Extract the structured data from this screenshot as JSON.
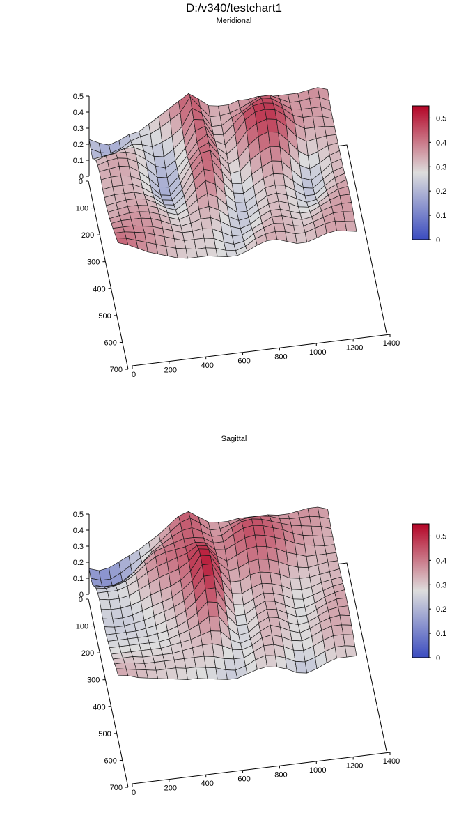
{
  "title": "D:/v340/testchart1",
  "colors": {
    "low": "#3b4cc0",
    "mid": "#dddddd",
    "high": "#b40426"
  },
  "chart_data": [
    {
      "type": "surface",
      "subtitle": "Meridional",
      "x_ticks": [
        "0",
        "200",
        "400",
        "600",
        "800",
        "1000",
        "1200",
        "1400"
      ],
      "y_ticks": [
        "0",
        "100",
        "200",
        "300",
        "400",
        "500",
        "600",
        "700"
      ],
      "z_ticks": [
        "0",
        "0.1",
        "0.2",
        "0.3",
        "0.4",
        "0.5"
      ],
      "xlim": [
        0,
        1400
      ],
      "ylim": [
        0,
        700
      ],
      "zlim": [
        0,
        0.5
      ],
      "colorbar_ticks": [
        "0",
        "0.1",
        "0.2",
        "0.3",
        "0.4",
        "0.5"
      ],
      "colorbar_range": [
        0,
        0.55
      ],
      "grid_x": [
        0,
        54,
        108,
        162,
        216,
        270,
        324,
        378,
        432,
        486,
        540,
        594,
        648,
        702,
        756,
        810,
        864,
        918,
        972,
        1026,
        1080,
        1134,
        1188,
        1242,
        1296
      ],
      "grid_y": [
        0,
        30,
        60,
        90,
        120,
        150,
        180,
        210,
        240,
        270,
        300,
        330,
        360,
        390,
        420,
        450,
        480,
        510
      ],
      "z": [
        [
          0.23,
          0.2,
          0.18,
          0.2,
          0.23,
          0.24,
          0.28,
          0.32,
          0.36,
          0.4,
          0.44,
          0.4,
          0.35,
          0.34,
          0.34,
          0.36,
          0.36,
          0.37,
          0.36,
          0.36,
          0.36,
          0.36,
          0.37,
          0.38,
          0.36
        ],
        [
          0.22,
          0.19,
          0.18,
          0.2,
          0.24,
          0.26,
          0.27,
          0.3,
          0.34,
          0.38,
          0.47,
          0.4,
          0.33,
          0.33,
          0.34,
          0.36,
          0.39,
          0.42,
          0.42,
          0.39,
          0.36,
          0.36,
          0.37,
          0.37,
          0.34
        ],
        [
          0.21,
          0.2,
          0.2,
          0.24,
          0.27,
          0.26,
          0.24,
          0.26,
          0.29,
          0.34,
          0.45,
          0.41,
          0.32,
          0.32,
          0.36,
          0.39,
          0.43,
          0.46,
          0.45,
          0.41,
          0.37,
          0.36,
          0.36,
          0.36,
          0.33
        ],
        [
          0.26,
          0.27,
          0.28,
          0.3,
          0.3,
          0.27,
          0.23,
          0.22,
          0.26,
          0.32,
          0.43,
          0.42,
          0.32,
          0.31,
          0.37,
          0.43,
          0.47,
          0.48,
          0.47,
          0.43,
          0.38,
          0.36,
          0.36,
          0.35,
          0.33
        ],
        [
          0.3,
          0.32,
          0.33,
          0.33,
          0.31,
          0.27,
          0.22,
          0.2,
          0.24,
          0.31,
          0.41,
          0.43,
          0.33,
          0.3,
          0.36,
          0.44,
          0.48,
          0.49,
          0.48,
          0.44,
          0.38,
          0.34,
          0.34,
          0.34,
          0.33
        ],
        [
          0.32,
          0.34,
          0.35,
          0.34,
          0.31,
          0.26,
          0.2,
          0.19,
          0.24,
          0.31,
          0.39,
          0.43,
          0.34,
          0.29,
          0.34,
          0.42,
          0.46,
          0.48,
          0.47,
          0.42,
          0.35,
          0.31,
          0.32,
          0.33,
          0.33
        ],
        [
          0.33,
          0.34,
          0.35,
          0.34,
          0.3,
          0.25,
          0.19,
          0.18,
          0.24,
          0.33,
          0.4,
          0.43,
          0.35,
          0.28,
          0.31,
          0.38,
          0.43,
          0.45,
          0.44,
          0.38,
          0.31,
          0.27,
          0.29,
          0.32,
          0.33
        ],
        [
          0.33,
          0.34,
          0.34,
          0.33,
          0.3,
          0.25,
          0.19,
          0.18,
          0.25,
          0.35,
          0.42,
          0.43,
          0.35,
          0.27,
          0.28,
          0.34,
          0.38,
          0.41,
          0.4,
          0.34,
          0.27,
          0.24,
          0.27,
          0.31,
          0.33
        ],
        [
          0.32,
          0.33,
          0.33,
          0.33,
          0.3,
          0.26,
          0.21,
          0.2,
          0.26,
          0.36,
          0.43,
          0.42,
          0.34,
          0.26,
          0.25,
          0.3,
          0.34,
          0.37,
          0.36,
          0.3,
          0.24,
          0.22,
          0.26,
          0.31,
          0.33
        ],
        [
          0.32,
          0.33,
          0.33,
          0.33,
          0.31,
          0.28,
          0.23,
          0.22,
          0.27,
          0.36,
          0.42,
          0.4,
          0.32,
          0.25,
          0.24,
          0.28,
          0.32,
          0.34,
          0.33,
          0.28,
          0.23,
          0.22,
          0.27,
          0.31,
          0.33
        ],
        [
          0.32,
          0.33,
          0.34,
          0.34,
          0.33,
          0.3,
          0.26,
          0.24,
          0.28,
          0.35,
          0.4,
          0.37,
          0.3,
          0.24,
          0.23,
          0.27,
          0.31,
          0.32,
          0.31,
          0.27,
          0.23,
          0.23,
          0.28,
          0.32,
          0.34
        ],
        [
          0.33,
          0.34,
          0.35,
          0.35,
          0.34,
          0.32,
          0.28,
          0.26,
          0.29,
          0.34,
          0.37,
          0.34,
          0.28,
          0.23,
          0.23,
          0.27,
          0.31,
          0.32,
          0.3,
          0.27,
          0.24,
          0.25,
          0.3,
          0.33,
          0.35
        ],
        [
          0.34,
          0.35,
          0.36,
          0.36,
          0.35,
          0.33,
          0.3,
          0.28,
          0.3,
          0.33,
          0.34,
          0.31,
          0.26,
          0.23,
          0.24,
          0.28,
          0.31,
          0.32,
          0.3,
          0.27,
          0.26,
          0.28,
          0.32,
          0.35,
          0.36
        ],
        [
          0.36,
          0.37,
          0.37,
          0.37,
          0.36,
          0.34,
          0.31,
          0.29,
          0.3,
          0.32,
          0.32,
          0.29,
          0.25,
          0.23,
          0.25,
          0.29,
          0.32,
          0.32,
          0.3,
          0.28,
          0.28,
          0.31,
          0.34,
          0.36,
          0.36
        ],
        [
          0.38,
          0.38,
          0.38,
          0.37,
          0.36,
          0.34,
          0.32,
          0.3,
          0.3,
          0.31,
          0.3,
          0.27,
          0.24,
          0.24,
          0.27,
          0.3,
          0.33,
          0.33,
          0.31,
          0.29,
          0.3,
          0.33,
          0.35,
          0.36,
          0.36
        ],
        [
          0.4,
          0.4,
          0.39,
          0.38,
          0.36,
          0.34,
          0.32,
          0.3,
          0.3,
          0.3,
          0.29,
          0.26,
          0.24,
          0.25,
          0.29,
          0.32,
          0.34,
          0.33,
          0.31,
          0.3,
          0.32,
          0.34,
          0.36,
          0.36,
          0.35
        ],
        [
          0.42,
          0.41,
          0.39,
          0.37,
          0.35,
          0.33,
          0.31,
          0.3,
          0.29,
          0.29,
          0.28,
          0.26,
          0.25,
          0.27,
          0.31,
          0.33,
          0.34,
          0.33,
          0.31,
          0.31,
          0.33,
          0.35,
          0.36,
          0.35,
          0.34
        ],
        [
          0.44,
          0.42,
          0.39,
          0.36,
          0.34,
          0.32,
          0.3,
          0.29,
          0.29,
          0.29,
          0.28,
          0.27,
          0.27,
          0.29,
          0.32,
          0.34,
          0.34,
          0.32,
          0.3,
          0.3,
          0.32,
          0.34,
          0.35,
          0.34,
          0.33
        ]
      ]
    },
    {
      "type": "surface",
      "subtitle": "Sagittal",
      "x_ticks": [
        "0",
        "200",
        "400",
        "600",
        "800",
        "1000",
        "1200",
        "1400"
      ],
      "y_ticks": [
        "0",
        "100",
        "200",
        "300",
        "400",
        "500",
        "600",
        "700"
      ],
      "z_ticks": [
        "0",
        "0.1",
        "0.2",
        "0.3",
        "0.4",
        "0.5"
      ],
      "xlim": [
        0,
        1400
      ],
      "ylim": [
        0,
        700
      ],
      "zlim": [
        0,
        0.5
      ],
      "colorbar_ticks": [
        "0",
        "0.1",
        "0.2",
        "0.3",
        "0.4",
        "0.5"
      ],
      "colorbar_range": [
        0,
        0.55
      ],
      "grid_x": [
        0,
        54,
        108,
        162,
        216,
        270,
        324,
        378,
        432,
        486,
        540,
        594,
        648,
        702,
        756,
        810,
        864,
        918,
        972,
        1026,
        1080,
        1134,
        1188,
        1242,
        1296
      ],
      "grid_y": [
        0,
        30,
        60,
        90,
        120,
        150,
        180,
        210,
        240,
        270,
        300,
        330,
        360,
        390,
        420,
        450,
        480,
        510
      ],
      "z": [
        [
          0.16,
          0.14,
          0.15,
          0.18,
          0.21,
          0.24,
          0.28,
          0.32,
          0.37,
          0.42,
          0.44,
          0.4,
          0.36,
          0.35,
          0.35,
          0.36,
          0.36,
          0.36,
          0.36,
          0.35,
          0.35,
          0.36,
          0.37,
          0.37,
          0.35
        ],
        [
          0.15,
          0.13,
          0.13,
          0.16,
          0.2,
          0.24,
          0.28,
          0.33,
          0.38,
          0.43,
          0.45,
          0.41,
          0.36,
          0.36,
          0.38,
          0.4,
          0.41,
          0.41,
          0.4,
          0.38,
          0.37,
          0.37,
          0.37,
          0.36,
          0.34
        ],
        [
          0.16,
          0.14,
          0.14,
          0.16,
          0.2,
          0.26,
          0.32,
          0.36,
          0.4,
          0.43,
          0.44,
          0.41,
          0.37,
          0.37,
          0.41,
          0.44,
          0.45,
          0.44,
          0.42,
          0.4,
          0.38,
          0.37,
          0.36,
          0.35,
          0.33
        ],
        [
          0.2,
          0.19,
          0.19,
          0.21,
          0.26,
          0.32,
          0.37,
          0.39,
          0.41,
          0.43,
          0.43,
          0.42,
          0.38,
          0.38,
          0.42,
          0.45,
          0.46,
          0.45,
          0.43,
          0.41,
          0.38,
          0.36,
          0.35,
          0.34,
          0.33
        ],
        [
          0.24,
          0.23,
          0.24,
          0.26,
          0.3,
          0.35,
          0.39,
          0.41,
          0.42,
          0.43,
          0.45,
          0.44,
          0.39,
          0.38,
          0.41,
          0.44,
          0.45,
          0.44,
          0.42,
          0.4,
          0.37,
          0.35,
          0.34,
          0.33,
          0.33
        ],
        [
          0.26,
          0.26,
          0.26,
          0.28,
          0.31,
          0.35,
          0.38,
          0.4,
          0.42,
          0.44,
          0.48,
          0.47,
          0.4,
          0.36,
          0.39,
          0.42,
          0.43,
          0.42,
          0.4,
          0.37,
          0.35,
          0.33,
          0.33,
          0.33,
          0.33
        ],
        [
          0.27,
          0.26,
          0.26,
          0.27,
          0.3,
          0.33,
          0.36,
          0.38,
          0.4,
          0.44,
          0.51,
          0.5,
          0.41,
          0.35,
          0.36,
          0.39,
          0.4,
          0.39,
          0.37,
          0.34,
          0.32,
          0.31,
          0.32,
          0.33,
          0.33
        ],
        [
          0.26,
          0.25,
          0.25,
          0.26,
          0.28,
          0.31,
          0.33,
          0.35,
          0.38,
          0.43,
          0.52,
          0.51,
          0.41,
          0.33,
          0.33,
          0.36,
          0.37,
          0.36,
          0.34,
          0.31,
          0.3,
          0.3,
          0.31,
          0.32,
          0.33
        ],
        [
          0.25,
          0.24,
          0.24,
          0.25,
          0.27,
          0.29,
          0.31,
          0.33,
          0.37,
          0.42,
          0.51,
          0.51,
          0.4,
          0.31,
          0.3,
          0.33,
          0.35,
          0.34,
          0.32,
          0.29,
          0.28,
          0.29,
          0.31,
          0.32,
          0.33
        ],
        [
          0.25,
          0.24,
          0.24,
          0.25,
          0.26,
          0.28,
          0.3,
          0.32,
          0.35,
          0.41,
          0.49,
          0.49,
          0.38,
          0.29,
          0.28,
          0.31,
          0.34,
          0.33,
          0.31,
          0.28,
          0.27,
          0.29,
          0.31,
          0.33,
          0.34
        ],
        [
          0.25,
          0.25,
          0.25,
          0.25,
          0.26,
          0.27,
          0.29,
          0.31,
          0.34,
          0.39,
          0.46,
          0.46,
          0.35,
          0.27,
          0.27,
          0.31,
          0.34,
          0.33,
          0.3,
          0.27,
          0.27,
          0.29,
          0.32,
          0.34,
          0.35
        ],
        [
          0.26,
          0.26,
          0.26,
          0.26,
          0.26,
          0.27,
          0.28,
          0.3,
          0.33,
          0.37,
          0.43,
          0.42,
          0.33,
          0.26,
          0.26,
          0.31,
          0.34,
          0.33,
          0.3,
          0.27,
          0.27,
          0.3,
          0.33,
          0.35,
          0.35
        ],
        [
          0.27,
          0.27,
          0.27,
          0.27,
          0.27,
          0.27,
          0.28,
          0.3,
          0.32,
          0.35,
          0.39,
          0.38,
          0.3,
          0.25,
          0.26,
          0.31,
          0.34,
          0.33,
          0.29,
          0.27,
          0.28,
          0.31,
          0.34,
          0.35,
          0.35
        ],
        [
          0.28,
          0.28,
          0.28,
          0.28,
          0.28,
          0.28,
          0.29,
          0.3,
          0.31,
          0.33,
          0.35,
          0.34,
          0.28,
          0.25,
          0.27,
          0.31,
          0.34,
          0.32,
          0.29,
          0.27,
          0.29,
          0.32,
          0.34,
          0.35,
          0.34
        ],
        [
          0.3,
          0.3,
          0.3,
          0.29,
          0.29,
          0.29,
          0.29,
          0.3,
          0.31,
          0.32,
          0.32,
          0.3,
          0.27,
          0.26,
          0.28,
          0.32,
          0.33,
          0.31,
          0.28,
          0.27,
          0.29,
          0.32,
          0.34,
          0.34,
          0.33
        ],
        [
          0.32,
          0.32,
          0.31,
          0.3,
          0.3,
          0.3,
          0.3,
          0.3,
          0.3,
          0.3,
          0.29,
          0.27,
          0.26,
          0.26,
          0.29,
          0.32,
          0.32,
          0.3,
          0.27,
          0.26,
          0.28,
          0.31,
          0.33,
          0.33,
          0.32
        ],
        [
          0.34,
          0.33,
          0.32,
          0.31,
          0.3,
          0.3,
          0.3,
          0.29,
          0.29,
          0.28,
          0.27,
          0.25,
          0.24,
          0.26,
          0.29,
          0.31,
          0.3,
          0.28,
          0.25,
          0.24,
          0.26,
          0.29,
          0.31,
          0.31,
          0.3
        ],
        [
          0.35,
          0.34,
          0.32,
          0.31,
          0.3,
          0.29,
          0.28,
          0.27,
          0.27,
          0.26,
          0.25,
          0.24,
          0.24,
          0.26,
          0.28,
          0.29,
          0.28,
          0.26,
          0.23,
          0.22,
          0.24,
          0.27,
          0.29,
          0.29,
          0.29
        ]
      ]
    }
  ]
}
